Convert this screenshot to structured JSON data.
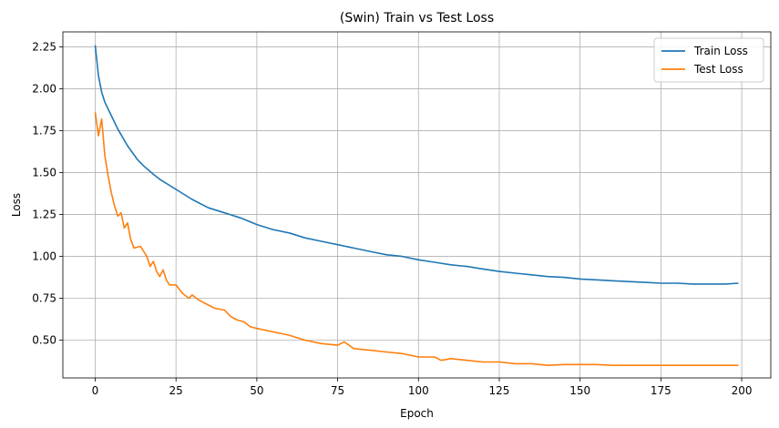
{
  "chart_data": {
    "type": "line",
    "title": "(Swin) Train vs Test Loss",
    "xlabel": "Epoch",
    "ylabel": "Loss",
    "xlim": [
      -10,
      209
    ],
    "ylim": [
      0.275,
      2.34
    ],
    "xticks": [
      0,
      25,
      50,
      75,
      100,
      125,
      150,
      175,
      200
    ],
    "yticks": [
      0.5,
      0.75,
      1.0,
      1.25,
      1.5,
      1.75,
      2.0,
      2.25
    ],
    "ytick_labels": [
      "0.50",
      "0.75",
      "1.00",
      "1.25",
      "1.50",
      "1.75",
      "2.00",
      "2.25"
    ],
    "grid": true,
    "legend_position": "top-right",
    "series": [
      {
        "name": "Train Loss",
        "color": "#1f77b4",
        "points": [
          [
            0,
            2.26
          ],
          [
            1,
            2.08
          ],
          [
            2,
            1.98
          ],
          [
            3,
            1.92
          ],
          [
            5,
            1.84
          ],
          [
            7,
            1.76
          ],
          [
            10,
            1.66
          ],
          [
            13,
            1.58
          ],
          [
            15,
            1.54
          ],
          [
            18,
            1.49
          ],
          [
            20,
            1.46
          ],
          [
            25,
            1.4
          ],
          [
            30,
            1.34
          ],
          [
            35,
            1.29
          ],
          [
            40,
            1.26
          ],
          [
            45,
            1.23
          ],
          [
            50,
            1.19
          ],
          [
            55,
            1.16
          ],
          [
            60,
            1.14
          ],
          [
            65,
            1.11
          ],
          [
            70,
            1.09
          ],
          [
            75,
            1.07
          ],
          [
            80,
            1.05
          ],
          [
            85,
            1.03
          ],
          [
            90,
            1.01
          ],
          [
            95,
            1.0
          ],
          [
            100,
            0.98
          ],
          [
            105,
            0.965
          ],
          [
            110,
            0.95
          ],
          [
            115,
            0.94
          ],
          [
            120,
            0.925
          ],
          [
            125,
            0.91
          ],
          [
            130,
            0.9
          ],
          [
            135,
            0.89
          ],
          [
            140,
            0.88
          ],
          [
            145,
            0.875
          ],
          [
            150,
            0.865
          ],
          [
            155,
            0.86
          ],
          [
            160,
            0.855
          ],
          [
            165,
            0.85
          ],
          [
            170,
            0.845
          ],
          [
            175,
            0.84
          ],
          [
            180,
            0.84
          ],
          [
            185,
            0.835
          ],
          [
            190,
            0.835
          ],
          [
            195,
            0.835
          ],
          [
            199,
            0.84
          ]
        ]
      },
      {
        "name": "Test Loss",
        "color": "#ff7f0e",
        "points": [
          [
            0,
            1.86
          ],
          [
            1,
            1.72
          ],
          [
            2,
            1.82
          ],
          [
            3,
            1.6
          ],
          [
            4,
            1.48
          ],
          [
            5,
            1.38
          ],
          [
            6,
            1.3
          ],
          [
            7,
            1.24
          ],
          [
            8,
            1.26
          ],
          [
            9,
            1.17
          ],
          [
            10,
            1.2
          ],
          [
            11,
            1.1
          ],
          [
            12,
            1.05
          ],
          [
            14,
            1.06
          ],
          [
            16,
            1.0
          ],
          [
            17,
            0.94
          ],
          [
            18,
            0.97
          ],
          [
            19,
            0.91
          ],
          [
            20,
            0.88
          ],
          [
            21,
            0.92
          ],
          [
            22,
            0.86
          ],
          [
            23,
            0.83
          ],
          [
            25,
            0.83
          ],
          [
            27,
            0.78
          ],
          [
            29,
            0.75
          ],
          [
            30,
            0.77
          ],
          [
            32,
            0.74
          ],
          [
            35,
            0.71
          ],
          [
            37,
            0.69
          ],
          [
            40,
            0.68
          ],
          [
            42,
            0.64
          ],
          [
            44,
            0.62
          ],
          [
            46,
            0.61
          ],
          [
            48,
            0.58
          ],
          [
            50,
            0.57
          ],
          [
            55,
            0.55
          ],
          [
            60,
            0.53
          ],
          [
            65,
            0.5
          ],
          [
            70,
            0.48
          ],
          [
            75,
            0.47
          ],
          [
            77,
            0.49
          ],
          [
            80,
            0.45
          ],
          [
            85,
            0.44
          ],
          [
            90,
            0.43
          ],
          [
            95,
            0.42
          ],
          [
            100,
            0.4
          ],
          [
            105,
            0.4
          ],
          [
            107,
            0.38
          ],
          [
            110,
            0.39
          ],
          [
            115,
            0.38
          ],
          [
            120,
            0.37
          ],
          [
            125,
            0.37
          ],
          [
            130,
            0.36
          ],
          [
            135,
            0.36
          ],
          [
            140,
            0.35
          ],
          [
            145,
            0.355
          ],
          [
            150,
            0.355
          ],
          [
            155,
            0.355
          ],
          [
            160,
            0.35
          ],
          [
            165,
            0.35
          ],
          [
            170,
            0.35
          ],
          [
            175,
            0.35
          ],
          [
            180,
            0.35
          ],
          [
            185,
            0.35
          ],
          [
            190,
            0.35
          ],
          [
            195,
            0.35
          ],
          [
            199,
            0.35
          ]
        ]
      }
    ]
  }
}
